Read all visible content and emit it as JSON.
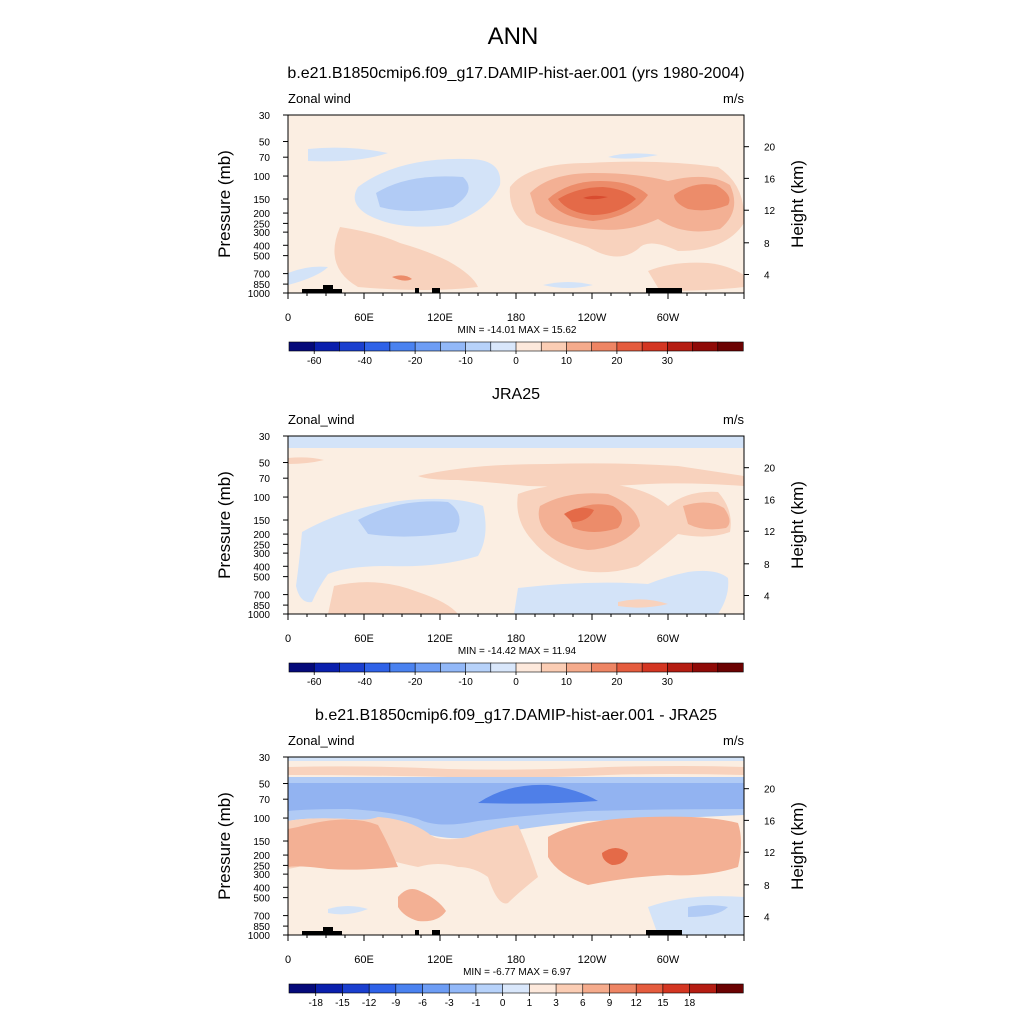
{
  "figure_title": "ANN",
  "chart_data": [
    {
      "type": "heatmap",
      "title": "b.e21.B1850cmip6.f09_g17.DAMIP-hist-aer.001 (yrs 1980-2004)",
      "left_label": "Zonal wind",
      "right_label": "m/s",
      "ylabel": "Pressure (mb)",
      "ylabel_right": "Height (km)",
      "x_ticks": [
        "0",
        "60E",
        "120E",
        "180",
        "120W",
        "60W"
      ],
      "y_ticks": [
        "30",
        "50",
        "70",
        "100",
        "150",
        "200",
        "250",
        "300",
        "400",
        "500",
        "700",
        "850",
        "1000"
      ],
      "height_ticks": [
        "20",
        "16",
        "12",
        "8",
        "4"
      ],
      "stats": "MIN = -14.01  MAX =  15.62",
      "colorbar_labels": [
        "-60",
        "-40",
        "-20",
        "-10",
        "0",
        "10",
        "20",
        "30"
      ],
      "colorbar_colors": [
        "#050a7a",
        "#0a1fad",
        "#1a3fcf",
        "#2f62e8",
        "#4a82f0",
        "#6d9df5",
        "#92b8f8",
        "#b7d2fa",
        "#d9e7fb",
        "#fde9dc",
        "#fbcdb4",
        "#f5ab8c",
        "#ee8564",
        "#e55c3e",
        "#d43622",
        "#b51d12",
        "#8f0a07",
        "#6b0202"
      ]
    },
    {
      "type": "heatmap",
      "title": "JRA25",
      "left_label": "Zonal_wind",
      "right_label": "m/s",
      "ylabel": "Pressure (mb)",
      "ylabel_right": "Height (km)",
      "x_ticks": [
        "0",
        "60E",
        "120E",
        "180",
        "120W",
        "60W"
      ],
      "y_ticks": [
        "30",
        "50",
        "70",
        "100",
        "150",
        "200",
        "250",
        "300",
        "400",
        "500",
        "700",
        "850",
        "1000"
      ],
      "height_ticks": [
        "20",
        "16",
        "12",
        "8",
        "4"
      ],
      "stats": "MIN = -14.42  MAX =  11.94",
      "colorbar_labels": [
        "-60",
        "-40",
        "-20",
        "-10",
        "0",
        "10",
        "20",
        "30"
      ],
      "colorbar_colors": [
        "#050a7a",
        "#0a1fad",
        "#1a3fcf",
        "#2f62e8",
        "#4a82f0",
        "#6d9df5",
        "#92b8f8",
        "#b7d2fa",
        "#d9e7fb",
        "#fde9dc",
        "#fbcdb4",
        "#f5ab8c",
        "#ee8564",
        "#e55c3e",
        "#d43622",
        "#b51d12",
        "#8f0a07",
        "#6b0202"
      ]
    },
    {
      "type": "heatmap",
      "title": "b.e21.B1850cmip6.f09_g17.DAMIP-hist-aer.001 - JRA25",
      "left_label": "Zonal_wind",
      "right_label": "m/s",
      "ylabel": "Pressure (mb)",
      "ylabel_right": "Height (km)",
      "x_ticks": [
        "0",
        "60E",
        "120E",
        "180",
        "120W",
        "60W"
      ],
      "y_ticks": [
        "30",
        "50",
        "70",
        "100",
        "150",
        "200",
        "250",
        "300",
        "400",
        "500",
        "700",
        "850",
        "1000"
      ],
      "height_ticks": [
        "20",
        "16",
        "12",
        "8",
        "4"
      ],
      "stats": "MIN =  -6.77  MAX =   6.97",
      "colorbar_labels": [
        "-18",
        "-15",
        "-12",
        "-9",
        "-6",
        "-3",
        "-1",
        "0",
        "1",
        "3",
        "6",
        "9",
        "12",
        "15",
        "18"
      ],
      "colorbar_colors": [
        "#050a7a",
        "#0a1fad",
        "#1a3fcf",
        "#2f62e8",
        "#4a82f0",
        "#6d9df5",
        "#92b8f8",
        "#b7d2fa",
        "#d9e7fb",
        "#fde9dc",
        "#fbcdb4",
        "#f5ab8c",
        "#ee8564",
        "#e55c3e",
        "#d43622",
        "#b51d12",
        "#6b0202"
      ]
    }
  ]
}
